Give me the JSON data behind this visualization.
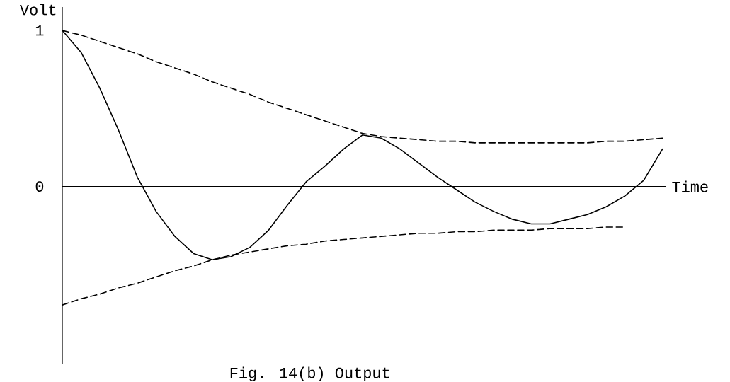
{
  "chart_data": {
    "type": "line",
    "title": "Fig. 14(b)  Output",
    "xlabel": "Time",
    "ylabel": "Volt",
    "categories": [
      null,
      null,
      null,
      null,
      null,
      null,
      null,
      null,
      null,
      null,
      null,
      null,
      null,
      null,
      null,
      null,
      null,
      null,
      null,
      null,
      null,
      null,
      null,
      null,
      null,
      null,
      null,
      null,
      null,
      null,
      null,
      null,
      null
    ],
    "series": [
      {
        "color": "#000000",
        "line_style": "solid",
        "values": [
          1.0,
          0.86,
          0.63,
          0.36,
          0.06,
          -0.16,
          -0.32,
          -0.43,
          -0.47,
          -0.45,
          -0.39,
          -0.28,
          -0.12,
          0.03,
          0.13,
          0.24,
          0.33,
          0.31,
          0.24,
          0.15,
          0.06,
          -0.02,
          -0.1,
          -0.16,
          -0.21,
          -0.24,
          -0.24,
          -0.21,
          -0.18,
          -0.13,
          -0.06,
          0.04,
          0.24
        ]
      },
      {
        "color": "#000000",
        "line_style": "dashed",
        "values": [
          1.0,
          0.97,
          0.93,
          0.89,
          0.85,
          0.8,
          0.76,
          0.72,
          0.67,
          0.63,
          0.59,
          0.54,
          0.5,
          0.46,
          0.42,
          0.38,
          0.34,
          0.32,
          0.31,
          0.3,
          0.29,
          0.29,
          0.28,
          0.28,
          0.28,
          0.28,
          0.28,
          0.28,
          0.28,
          0.29,
          0.29,
          0.3,
          0.31
        ]
      },
      {
        "color": "#000000",
        "line_style": "dashed",
        "values": [
          -0.76,
          -0.72,
          -0.69,
          -0.65,
          -0.62,
          -0.58,
          -0.54,
          -0.51,
          -0.47,
          -0.44,
          -0.42,
          -0.4,
          -0.38,
          -0.37,
          -0.35,
          -0.34,
          -0.33,
          -0.32,
          -0.31,
          -0.3,
          -0.3,
          -0.29,
          -0.29,
          -0.28,
          -0.28,
          -0.28,
          -0.27,
          -0.27,
          -0.27,
          -0.26,
          -0.26,
          null,
          null
        ]
      }
    ],
    "ylim": [
      -1.14,
      1.15
    ],
    "yticks": [
      0,
      1
    ],
    "tick_labels": "y"
  }
}
